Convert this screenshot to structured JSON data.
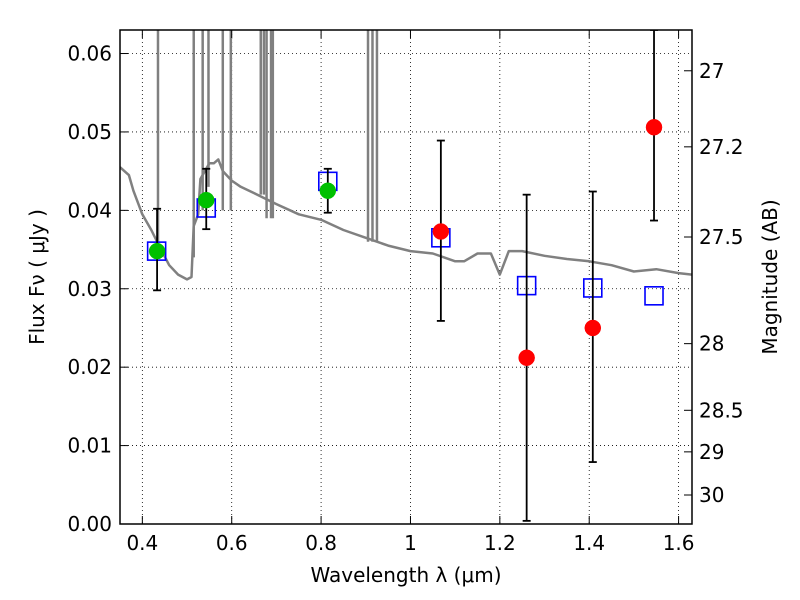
{
  "chart_data": {
    "type": "scatter",
    "xlabel": "Wavelength  λ (μm)",
    "ylabel": "Flux  Fν  ( μJy )",
    "ylabel_right": "Magnitude (AB)",
    "xlim": [
      0.35,
      1.63
    ],
    "ylim": [
      0.0,
      0.063
    ],
    "grid": true,
    "x_ticks": [
      0.4,
      0.6,
      0.8,
      1.0,
      1.2,
      1.4,
      1.6
    ],
    "x_tick_labels": [
      "0.4",
      "0.6",
      "0.8",
      "1",
      "1.2",
      "1.4",
      "1.6"
    ],
    "y_ticks": [
      0.0,
      0.01,
      0.02,
      0.03,
      0.04,
      0.05,
      0.06
    ],
    "y_tick_labels": [
      "0.00",
      "0.01",
      "0.02",
      "0.03",
      "0.04",
      "0.05",
      "0.06"
    ],
    "right_ticks": [
      {
        "flux": 0.0578,
        "label": "27"
      },
      {
        "flux": 0.0481,
        "label": "27.2"
      },
      {
        "flux": 0.0366,
        "label": "27.5"
      },
      {
        "flux": 0.023,
        "label": "28"
      },
      {
        "flux": 0.0145,
        "label": "28.5"
      },
      {
        "flux": 0.0092,
        "label": "29"
      },
      {
        "flux": 0.0037,
        "label": "30"
      }
    ],
    "series": [
      {
        "kind": "model-spectrum",
        "color": "#808080",
        "x": [
          0.35,
          0.37,
          0.38,
          0.4,
          0.42,
          0.44,
          0.46,
          0.48,
          0.5,
          0.51,
          0.515,
          0.525,
          0.53,
          0.55,
          0.56,
          0.57,
          0.58,
          0.6,
          0.62,
          0.65,
          0.7,
          0.75,
          0.8,
          0.85,
          0.9,
          0.95,
          1.0,
          1.05,
          1.1,
          1.12,
          1.15,
          1.18,
          1.2,
          1.22,
          1.25,
          1.3,
          1.35,
          1.4,
          1.45,
          1.5,
          1.55,
          1.6,
          1.63
        ],
        "y": [
          0.0455,
          0.0445,
          0.0425,
          0.0395,
          0.0375,
          0.0352,
          0.033,
          0.0318,
          0.0312,
          0.0315,
          0.038,
          0.0395,
          0.044,
          0.046,
          0.046,
          0.0465,
          0.045,
          0.0438,
          0.043,
          0.0422,
          0.0408,
          0.0395,
          0.0388,
          0.0375,
          0.0365,
          0.0355,
          0.0348,
          0.0345,
          0.0335,
          0.0335,
          0.0345,
          0.0345,
          0.0318,
          0.0348,
          0.0348,
          0.0342,
          0.0338,
          0.0335,
          0.033,
          0.0322,
          0.0325,
          0.032,
          0.0318
        ]
      },
      {
        "kind": "spectrum-spikes",
        "color": "#808080",
        "x": [
          0.435,
          0.515,
          0.535,
          0.548,
          0.58,
          0.598,
          0.665,
          0.672,
          0.678,
          0.688,
          0.692,
          0.905,
          0.915,
          0.925
        ],
        "y": [
          0.034,
          0.034,
          0.04,
          0.043,
          0.04,
          0.04,
          0.042,
          0.042,
          0.039,
          0.039,
          0.039,
          0.036,
          0.036,
          0.036
        ]
      },
      {
        "kind": "open-squares",
        "color": "#0000ff",
        "x": [
          0.432,
          0.543,
          0.815,
          1.068,
          1.26,
          1.408,
          1.545
        ],
        "y": [
          0.0348,
          0.0403,
          0.0437,
          0.0365,
          0.0304,
          0.0301,
          0.0291
        ]
      },
      {
        "kind": "green-points",
        "color": "#00c000",
        "x": [
          0.433,
          0.543,
          0.815
        ],
        "y": [
          0.0348,
          0.0413,
          0.0425
        ],
        "yerr_low": [
          0.0298,
          0.0376,
          0.0397
        ],
        "yerr_high": [
          0.0402,
          0.0453,
          0.0453
        ]
      },
      {
        "kind": "red-points",
        "color": "#ff0000",
        "x": [
          1.068,
          1.26,
          1.408,
          1.545
        ],
        "y": [
          0.0373,
          0.0212,
          0.025,
          0.0506
        ],
        "yerr_low": [
          0.0259,
          0.0004,
          0.0079,
          0.0387
        ],
        "yerr_high": [
          0.0489,
          0.042,
          0.0424,
          0.063
        ]
      }
    ]
  }
}
